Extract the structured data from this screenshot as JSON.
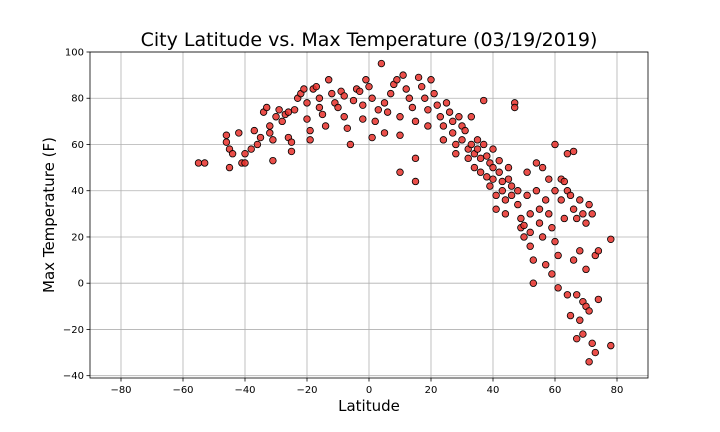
{
  "chart_data": {
    "type": "scatter",
    "title": "City Latitude vs. Max Temperature (03/19/2019)",
    "xlabel": "Latitude",
    "ylabel": "Max Temperature (F)",
    "xlim": [
      -90,
      90
    ],
    "ylim": [
      -41,
      100
    ],
    "xticks": [
      -80,
      -60,
      -40,
      -20,
      0,
      20,
      40,
      60,
      80
    ],
    "yticks": [
      -40,
      -20,
      0,
      20,
      40,
      60,
      80,
      100
    ],
    "grid": true,
    "marker": {
      "fill": "#e8302a",
      "edge": "#000000",
      "alpha": 0.85
    },
    "points": [
      [
        -55,
        52
      ],
      [
        -53,
        52
      ],
      [
        -46,
        64
      ],
      [
        -46,
        61
      ],
      [
        -45,
        58
      ],
      [
        -45,
        50
      ],
      [
        -44,
        56
      ],
      [
        -42,
        65
      ],
      [
        -41,
        52
      ],
      [
        -40,
        52
      ],
      [
        -40,
        56
      ],
      [
        -38,
        58
      ],
      [
        -37,
        66
      ],
      [
        -36,
        60
      ],
      [
        -35,
        63
      ],
      [
        -34,
        74
      ],
      [
        -33,
        76
      ],
      [
        -32,
        68
      ],
      [
        -32,
        65
      ],
      [
        -31,
        62
      ],
      [
        -31,
        53
      ],
      [
        -30,
        72
      ],
      [
        -29,
        75
      ],
      [
        -28,
        70
      ],
      [
        -27,
        73
      ],
      [
        -26,
        74
      ],
      [
        -26,
        63
      ],
      [
        -25,
        61
      ],
      [
        -25,
        57
      ],
      [
        -24,
        75
      ],
      [
        -23,
        80
      ],
      [
        -22,
        82
      ],
      [
        -21,
        84
      ],
      [
        -20,
        78
      ],
      [
        -20,
        71
      ],
      [
        -19,
        66
      ],
      [
        -19,
        62
      ],
      [
        -18,
        84
      ],
      [
        -17,
        85
      ],
      [
        -16,
        80
      ],
      [
        -16,
        76
      ],
      [
        -15,
        73
      ],
      [
        -14,
        68
      ],
      [
        -13,
        88
      ],
      [
        -12,
        82
      ],
      [
        -11,
        78
      ],
      [
        -10,
        76
      ],
      [
        -9,
        83
      ],
      [
        -8,
        81
      ],
      [
        -8,
        72
      ],
      [
        -7,
        67
      ],
      [
        -6,
        60
      ],
      [
        -5,
        79
      ],
      [
        -4,
        84
      ],
      [
        -3,
        83
      ],
      [
        -2,
        77
      ],
      [
        -2,
        71
      ],
      [
        -1,
        88
      ],
      [
        0,
        85
      ],
      [
        1,
        80
      ],
      [
        1,
        63
      ],
      [
        2,
        70
      ],
      [
        3,
        75
      ],
      [
        4,
        95
      ],
      [
        5,
        78
      ],
      [
        5,
        65
      ],
      [
        6,
        74
      ],
      [
        7,
        82
      ],
      [
        8,
        86
      ],
      [
        9,
        88
      ],
      [
        10,
        72
      ],
      [
        10,
        64
      ],
      [
        10,
        48
      ],
      [
        11,
        90
      ],
      [
        12,
        84
      ],
      [
        13,
        80
      ],
      [
        14,
        76
      ],
      [
        15,
        70
      ],
      [
        15,
        54
      ],
      [
        15,
        44
      ],
      [
        16,
        89
      ],
      [
        17,
        85
      ],
      [
        18,
        80
      ],
      [
        19,
        75
      ],
      [
        19,
        68
      ],
      [
        20,
        88
      ],
      [
        21,
        82
      ],
      [
        22,
        77
      ],
      [
        23,
        72
      ],
      [
        24,
        68
      ],
      [
        24,
        62
      ],
      [
        25,
        78
      ],
      [
        26,
        74
      ],
      [
        27,
        70
      ],
      [
        27,
        65
      ],
      [
        28,
        60
      ],
      [
        28,
        56
      ],
      [
        29,
        72
      ],
      [
        30,
        68
      ],
      [
        30,
        62
      ],
      [
        31,
        66
      ],
      [
        32,
        58
      ],
      [
        32,
        54
      ],
      [
        33,
        72
      ],
      [
        33,
        60
      ],
      [
        34,
        56
      ],
      [
        34,
        50
      ],
      [
        35,
        62
      ],
      [
        35,
        58
      ],
      [
        36,
        54
      ],
      [
        36,
        48
      ],
      [
        37,
        60
      ],
      [
        37,
        79
      ],
      [
        38,
        55
      ],
      [
        38,
        46
      ],
      [
        39,
        52
      ],
      [
        39,
        42
      ],
      [
        40,
        58
      ],
      [
        40,
        50
      ],
      [
        40,
        45
      ],
      [
        41,
        38
      ],
      [
        41,
        32
      ],
      [
        42,
        53
      ],
      [
        42,
        48
      ],
      [
        43,
        44
      ],
      [
        43,
        40
      ],
      [
        44,
        36
      ],
      [
        44,
        30
      ],
      [
        45,
        50
      ],
      [
        45,
        45
      ],
      [
        46,
        42
      ],
      [
        46,
        38
      ],
      [
        47,
        78
      ],
      [
        47,
        76
      ],
      [
        48,
        40
      ],
      [
        48,
        34
      ],
      [
        49,
        28
      ],
      [
        49,
        24
      ],
      [
        50,
        25
      ],
      [
        50,
        20
      ],
      [
        51,
        48
      ],
      [
        51,
        38
      ],
      [
        52,
        30
      ],
      [
        52,
        22
      ],
      [
        52,
        16
      ],
      [
        53,
        10
      ],
      [
        53,
        0
      ],
      [
        54,
        52
      ],
      [
        54,
        40
      ],
      [
        55,
        32
      ],
      [
        55,
        26
      ],
      [
        56,
        50
      ],
      [
        56,
        20
      ],
      [
        57,
        36
      ],
      [
        57,
        8
      ],
      [
        58,
        45
      ],
      [
        58,
        30
      ],
      [
        59,
        24
      ],
      [
        59,
        4
      ],
      [
        60,
        60
      ],
      [
        60,
        40
      ],
      [
        60,
        18
      ],
      [
        61,
        12
      ],
      [
        61,
        -2
      ],
      [
        62,
        45
      ],
      [
        62,
        36
      ],
      [
        63,
        44
      ],
      [
        63,
        28
      ],
      [
        64,
        56
      ],
      [
        64,
        40
      ],
      [
        64,
        -5
      ],
      [
        65,
        38
      ],
      [
        65,
        -14
      ],
      [
        66,
        57
      ],
      [
        66,
        32
      ],
      [
        66,
        10
      ],
      [
        67,
        28
      ],
      [
        67,
        -5
      ],
      [
        67,
        -24
      ],
      [
        68,
        36
      ],
      [
        68,
        14
      ],
      [
        68,
        -16
      ],
      [
        69,
        30
      ],
      [
        69,
        -8
      ],
      [
        69,
        -22
      ],
      [
        70,
        26
      ],
      [
        70,
        6
      ],
      [
        70,
        -10
      ],
      [
        71,
        34
      ],
      [
        71,
        -12
      ],
      [
        71,
        -34
      ],
      [
        72,
        30
      ],
      [
        72,
        -26
      ],
      [
        73,
        12
      ],
      [
        73,
        -30
      ],
      [
        74,
        14
      ],
      [
        74,
        -7
      ],
      [
        78,
        19
      ],
      [
        78,
        -27
      ]
    ]
  }
}
